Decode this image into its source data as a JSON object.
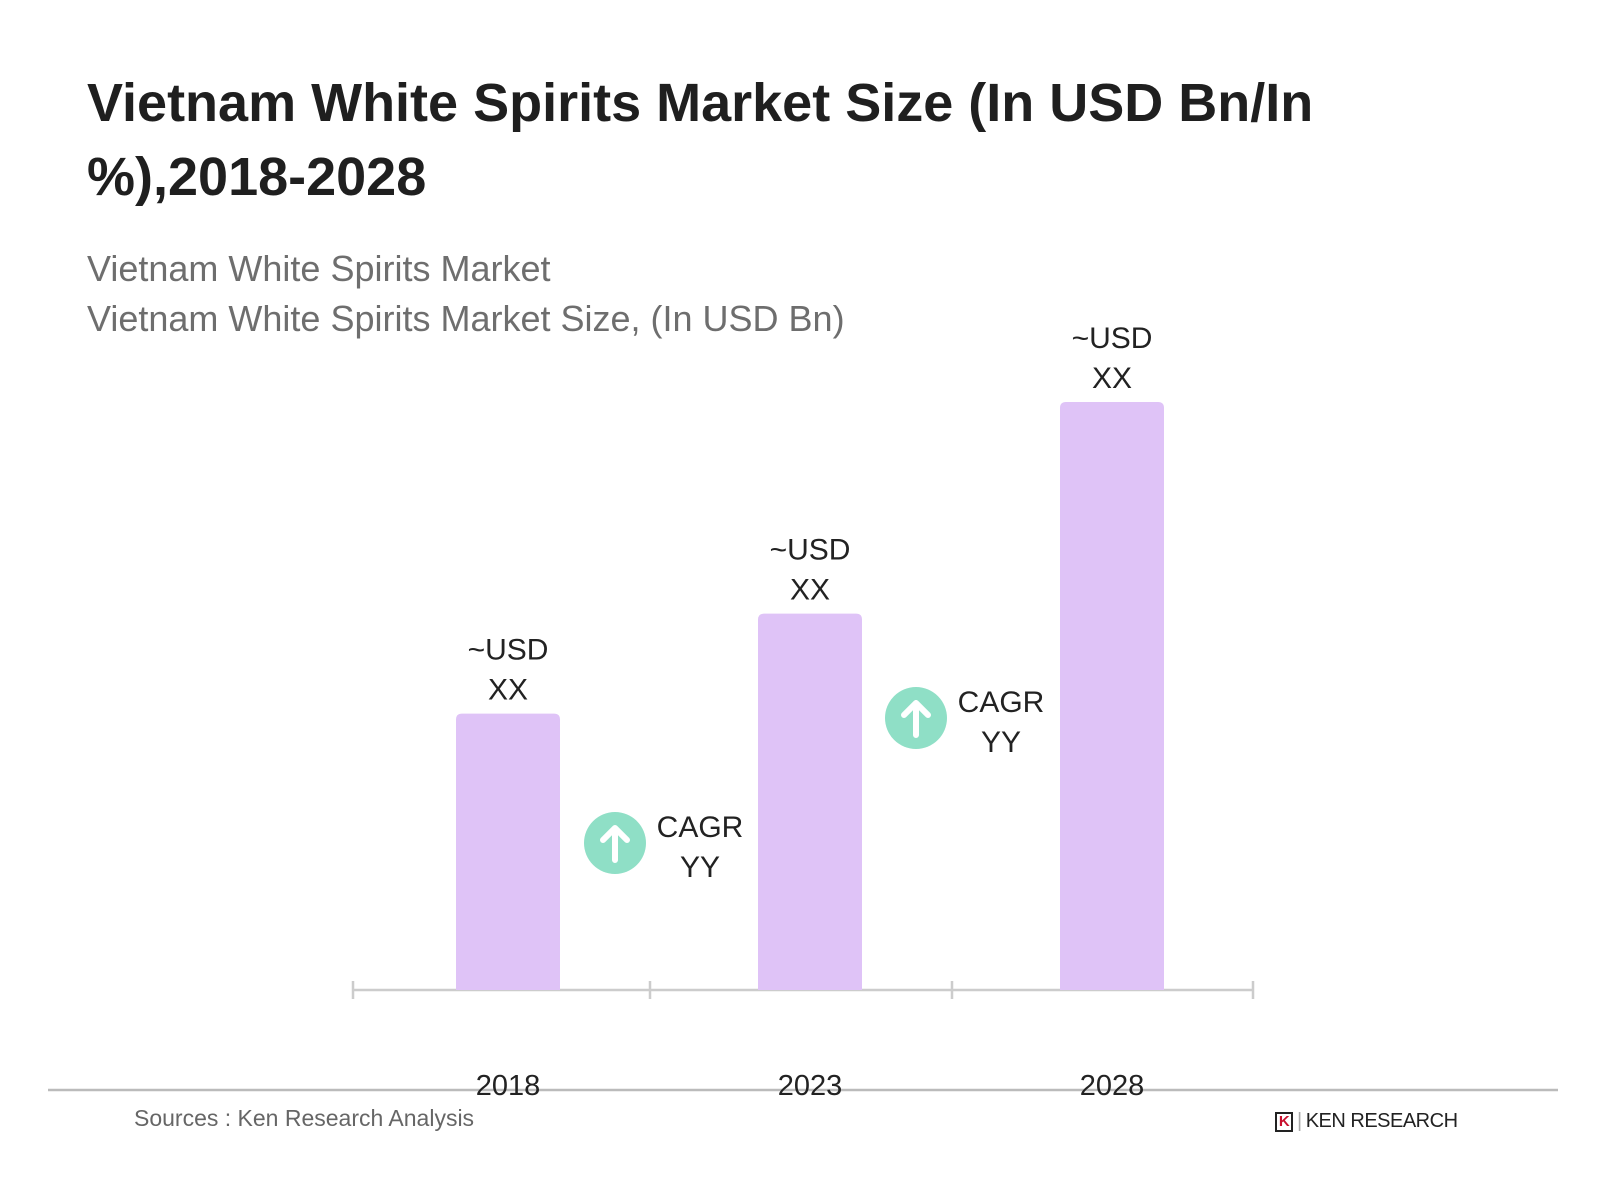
{
  "chart_data": {
    "type": "bar",
    "title": "Vietnam White Spirits Market Size (In USD Bn/In %),2018-2028",
    "subtitle": [
      "Vietnam White Spirits Market",
      "Vietnam White Spirits Market Size, (In USD Bn)"
    ],
    "categories": [
      "2018",
      "2023",
      "2028"
    ],
    "relative_values": [
      47,
      64,
      100
    ],
    "data_labels": [
      [
        "~USD",
        "XX"
      ],
      [
        "~USD",
        "XX"
      ],
      [
        "~USD",
        "XX"
      ]
    ],
    "annotations": [
      {
        "between": [
          "2018",
          "2023"
        ],
        "icon": "arrow-up-circle-icon",
        "lines": [
          "CAGR",
          "YY"
        ]
      },
      {
        "between": [
          "2023",
          "2028"
        ],
        "icon": "arrow-up-circle-icon",
        "lines": [
          "CAGR",
          "YY"
        ]
      }
    ],
    "bar_color": "#dfc3f7",
    "annotation_color": "#8fdfc6",
    "grid": false
  },
  "footer": {
    "sources": "Sources : Ken Research Analysis",
    "logo_text": "KEN RESEARCH",
    "logo_mark": "K"
  }
}
